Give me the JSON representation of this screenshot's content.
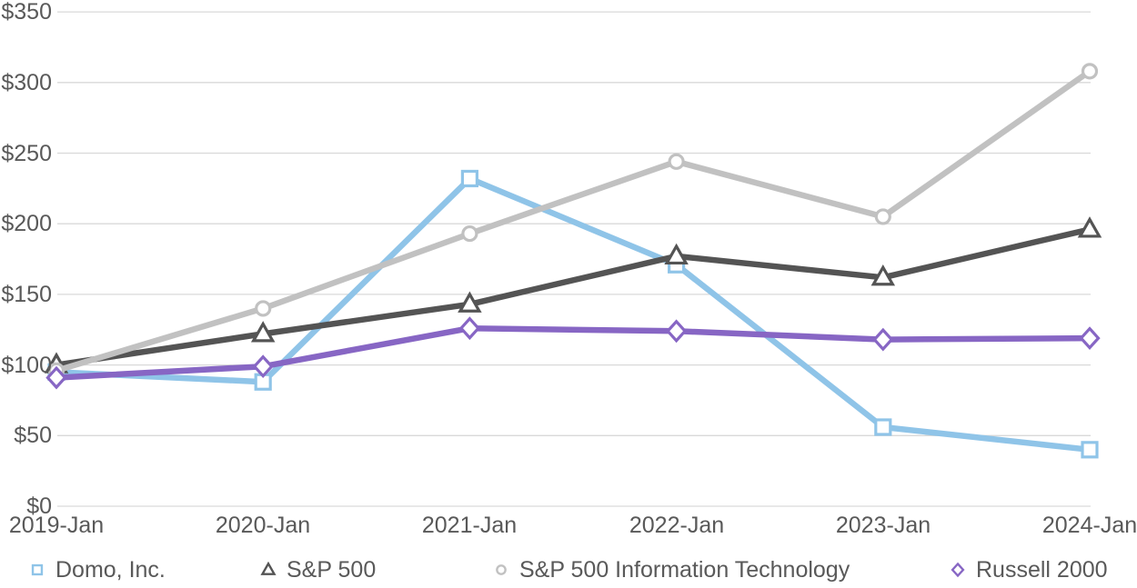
{
  "chart_data": {
    "type": "line",
    "title": "",
    "categories": [
      "2019-Jan",
      "2020-Jan",
      "2021-Jan",
      "2022-Jan",
      "2023-Jan",
      "2024-Jan"
    ],
    "y_axis": {
      "prefix": "$",
      "min": 0,
      "max": 350,
      "step": 50,
      "tick_labels": [
        "$0",
        "$50",
        "$100",
        "$150",
        "$200",
        "$250",
        "$300",
        "$350"
      ]
    },
    "series": [
      {
        "id": "domo",
        "name": "Domo, Inc.",
        "marker": "square",
        "color": "#8FC4E8",
        "values": [
          95,
          88,
          232,
          171,
          56,
          40
        ]
      },
      {
        "id": "sp500",
        "name": "S&P 500",
        "marker": "triangle",
        "color": "#545454",
        "values": [
          100,
          122,
          143,
          177,
          162,
          196
        ]
      },
      {
        "id": "sp500-it",
        "name": "S&P 500 Information Technology",
        "marker": "circle",
        "color": "#C1C1C1",
        "values": [
          96,
          140,
          193,
          244,
          205,
          308
        ]
      },
      {
        "id": "russell2000",
        "name": "Russell 2000",
        "marker": "diamond",
        "color": "#8766C4",
        "values": [
          91,
          99,
          126,
          124,
          118,
          119
        ]
      }
    ],
    "grid": true,
    "legend_position": "bottom",
    "gridline_color": "#D9D9D9",
    "text_color": "#595959",
    "background_color": "#FFFFFF"
  }
}
